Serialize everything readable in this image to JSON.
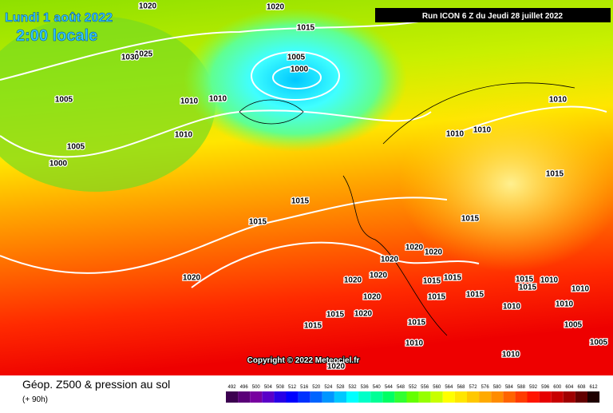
{
  "header": {
    "date": "Lundi 1 août 2022",
    "time": "2:00 locale",
    "run": "Run ICON 6 Z du Jeudi 28 juillet 2022",
    "copyright": "Copyright © 2022 Meteociel.fr"
  },
  "isobar_labels": [
    1020,
    1020,
    1015,
    1005,
    1000,
    1025,
    1030,
    1005,
    1010,
    1010,
    1010,
    1005,
    1000,
    1015,
    1015,
    1020,
    1010,
    1010,
    1010,
    1015,
    1015,
    1020,
    1020,
    1020,
    1020,
    1020,
    1015,
    1015,
    1020,
    1015,
    1015,
    1015,
    1020,
    1015,
    1015,
    1010,
    1010,
    1010,
    1010,
    1010,
    1005,
    1005,
    1015,
    1010,
    1015,
    1020
  ],
  "footer": {
    "title": "Géop. Z500 & pression au sol",
    "subtitle": "(+ 90h)"
  },
  "scale": {
    "values": [
      492,
      496,
      500,
      504,
      508,
      512,
      516,
      520,
      524,
      528,
      532,
      536,
      540,
      544,
      548,
      552,
      556,
      560,
      564,
      568,
      572,
      576,
      580,
      584,
      588,
      592,
      596,
      600,
      604,
      608,
      612
    ],
    "colors": [
      "#3c0050",
      "#5a0078",
      "#7800a0",
      "#5a00c8",
      "#2800e6",
      "#0000ff",
      "#0032ff",
      "#0064ff",
      "#0096ff",
      "#00c8ff",
      "#00ffff",
      "#00ffc8",
      "#00ff96",
      "#00ff64",
      "#32ff32",
      "#64ff00",
      "#96ff00",
      "#c8ff00",
      "#ffff00",
      "#ffe600",
      "#ffc800",
      "#ffaa00",
      "#ff8c00",
      "#ff6400",
      "#ff3c00",
      "#ff1400",
      "#e60000",
      "#c80000",
      "#a00000",
      "#640000",
      "#1e0000"
    ]
  }
}
